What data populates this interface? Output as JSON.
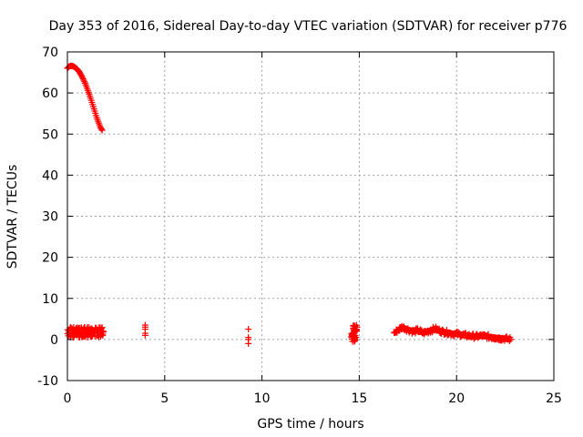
{
  "chart_data": {
    "type": "scatter",
    "title": "Day 353 of 2016, Sidereal Day-to-day VTEC variation (SDTVAR) for receiver p776",
    "xlabel": "GPS time / hours",
    "ylabel": "SDTVAR / TECUs",
    "xlim": [
      0,
      25
    ],
    "ylim": [
      -10,
      70
    ],
    "xticks": [
      "0",
      "5",
      "10",
      "15",
      "20",
      "25"
    ],
    "yticks": [
      "-10",
      "0",
      "10",
      "20",
      "30",
      "40",
      "50",
      "60",
      "70"
    ],
    "grid": true,
    "marker": "plus",
    "color": "#ff0000",
    "segments": [
      {
        "name": "arc-1",
        "x": [
          0.0,
          0.1,
          0.2,
          0.3,
          0.4,
          0.5,
          0.6,
          0.7,
          0.8,
          0.9,
          1.0,
          1.1,
          1.2,
          1.3,
          1.4,
          1.5,
          1.6,
          1.7,
          1.8
        ],
        "y": [
          66.0,
          66.5,
          66.6,
          66.5,
          66.2,
          65.8,
          65.2,
          64.4,
          63.5,
          62.5,
          61.3,
          60.0,
          58.6,
          57.1,
          55.6,
          54.1,
          52.8,
          51.6,
          50.8
        ]
      },
      {
        "name": "low-1",
        "x_range": [
          0.0,
          1.9
        ],
        "y_range": [
          0.5,
          3.0
        ]
      },
      {
        "name": "spike-4",
        "x": [
          4.0,
          4.0,
          4.0,
          4.0,
          4.0
        ],
        "y": [
          3.5,
          3.0,
          2.5,
          1.5,
          1.0
        ]
      },
      {
        "name": "spike-9",
        "x": [
          9.3,
          9.3,
          9.3,
          9.3
        ],
        "y": [
          2.5,
          0.5,
          0.0,
          -1.0
        ]
      },
      {
        "name": "low-15",
        "x_range": [
          14.6,
          14.9
        ],
        "y_range": [
          -0.5,
          3.5
        ]
      },
      {
        "name": "low-17",
        "x": [
          16.8,
          17.0,
          17.2,
          17.5,
          17.8,
          18.0,
          18.3,
          18.6,
          18.9,
          19.2,
          19.5,
          19.8,
          20.1,
          20.4,
          20.7,
          21.0,
          21.3,
          21.6,
          21.9,
          22.2,
          22.5,
          22.8
        ],
        "y": [
          1.6,
          2.3,
          3.0,
          2.4,
          1.9,
          2.2,
          1.6,
          2.1,
          2.6,
          2.0,
          1.7,
          1.4,
          1.3,
          1.0,
          0.9,
          0.7,
          0.9,
          0.7,
          0.5,
          0.3,
          0.2,
          0.0
        ]
      }
    ]
  }
}
